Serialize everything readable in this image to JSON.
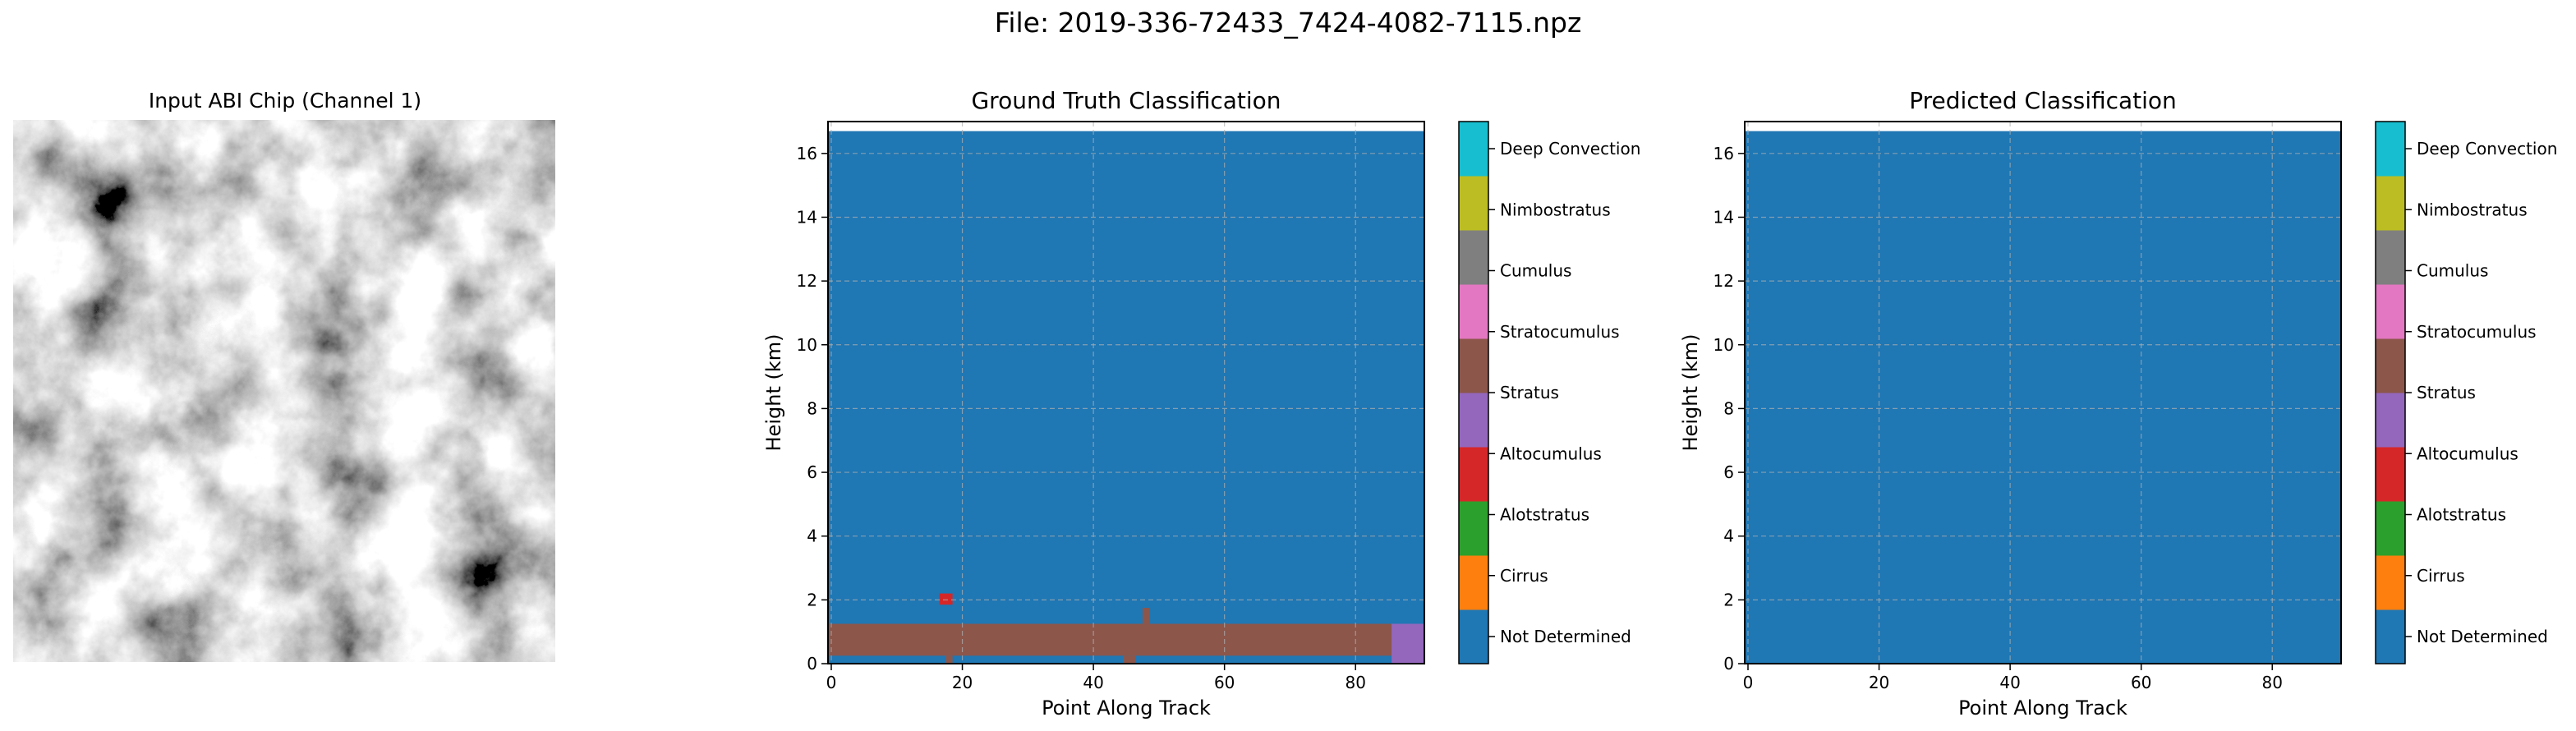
{
  "figure_title": "File: 2019-336-72433_7424-4082-7115.npz",
  "panels": {
    "input": {
      "title": "Input ABI Chip (Channel 1)"
    },
    "truth": {
      "title": "Ground Truth Classification"
    },
    "pred": {
      "title": "Predicted Classification"
    }
  },
  "colorbar": {
    "labels": [
      "Not Determined",
      "Cirrus",
      "Alotstratus",
      "Altocumulus",
      "Stratus",
      "Stratocumulus",
      "Cumulus",
      "Nimbostratus",
      "Deep Convection"
    ],
    "colors": [
      "#1f77b4",
      "#ff7f0e",
      "#2ca02c",
      "#d62728",
      "#9467bd",
      "#8c564b",
      "#e377c2",
      "#7f7f7f",
      "#bcbd22",
      "#17becf"
    ]
  },
  "chart_data": [
    {
      "type": "heatmap",
      "title": "Input ABI Chip (Channel 1)",
      "colormap": "gray",
      "axes": "off"
    },
    {
      "type": "heatmap",
      "title": "Ground Truth Classification",
      "xlabel": "Point Along Track",
      "ylabel": "Height (km)",
      "xlim": [
        -0.5,
        90.5
      ],
      "ylim": [
        0,
        17
      ],
      "data_top_km": 16.7,
      "xticks": [
        0,
        20,
        40,
        60,
        80
      ],
      "yticks": [
        0,
        2,
        4,
        6,
        8,
        10,
        12,
        14,
        16
      ],
      "grid": true,
      "background_class": "Not Determined",
      "regions": [
        {
          "class": "Stratocumulus",
          "x0": -0.5,
          "x1": 85.5,
          "y0": 0.25,
          "y1": 1.25
        },
        {
          "class": "Stratocumulus",
          "x0": 17.5,
          "x1": 18.5,
          "y0": 0.0,
          "y1": 0.25
        },
        {
          "class": "Stratocumulus",
          "x0": 44.5,
          "x1": 46.5,
          "y0": 0.0,
          "y1": 0.25
        },
        {
          "class": "Stratocumulus",
          "x0": 47.5,
          "x1": 48.5,
          "y0": 1.25,
          "y1": 1.75
        },
        {
          "class": "Stratus",
          "x0": 85.5,
          "x1": 90.5,
          "y0": 0.0,
          "y1": 1.25
        },
        {
          "class": "Altocumulus",
          "x0": 16.5,
          "x1": 18.5,
          "y0": 1.85,
          "y1": 2.2
        }
      ],
      "colorbar_ticks": [
        "Not Determined",
        "Cirrus",
        "Alotstratus",
        "Altocumulus",
        "Stratus",
        "Stratocumulus",
        "Cumulus",
        "Nimbostratus",
        "Deep Convection"
      ]
    },
    {
      "type": "heatmap",
      "title": "Predicted Classification",
      "xlabel": "Point Along Track",
      "ylabel": "Height (km)",
      "xlim": [
        -0.5,
        90.5
      ],
      "ylim": [
        0,
        17
      ],
      "data_top_km": 16.7,
      "xticks": [
        0,
        20,
        40,
        60,
        80
      ],
      "yticks": [
        0,
        2,
        4,
        6,
        8,
        10,
        12,
        14,
        16
      ],
      "grid": true,
      "background_class": "Not Determined",
      "regions": [],
      "colorbar_ticks": [
        "Not Determined",
        "Cirrus",
        "Alotstratus",
        "Altocumulus",
        "Stratus",
        "Stratocumulus",
        "Cumulus",
        "Nimbostratus",
        "Deep Convection"
      ]
    }
  ]
}
